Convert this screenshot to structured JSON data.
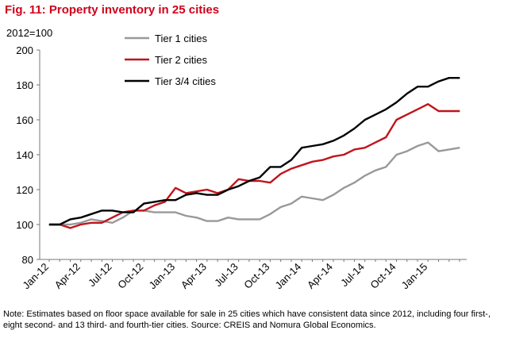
{
  "figure": {
    "title": "Fig. 11: Property inventory in 25 cities",
    "unit_label": "2012=100",
    "footnote": "Note: Estimates based on floor space available for sale in 25 cities which have consistent data since 2012, including four first-, eight second- and 13 third- and fourth-tier cities. Source: CREIS and Nomura Global Economics."
  },
  "chart_data": {
    "type": "line",
    "title": "Property inventory in 25 cities",
    "ylabel": "2012=100",
    "xlabel": "",
    "ylim": [
      80,
      200
    ],
    "yticks": [
      80,
      100,
      120,
      140,
      160,
      180,
      200
    ],
    "x_tick_labels": [
      "Jan-12",
      "Apr-12",
      "Jul-12",
      "Oct-12",
      "Jan-13",
      "Apr-13",
      "Jul-13",
      "Oct-13",
      "Jan-14",
      "Apr-14",
      "Jul-14",
      "Oct-14",
      "Jan-15"
    ],
    "x_tick_index": [
      0,
      3,
      6,
      9,
      12,
      15,
      18,
      21,
      24,
      27,
      30,
      33,
      36
    ],
    "x_count": 40,
    "grid": false,
    "legend_position": "top-left",
    "series": [
      {
        "name": "Tier 1 cities",
        "color": "#999999",
        "values": [
          100,
          100,
          100,
          101,
          103,
          102,
          101,
          104,
          108,
          108,
          107,
          107,
          107,
          105,
          104,
          102,
          102,
          104,
          103,
          103,
          103,
          106,
          110,
          112,
          116,
          115,
          114,
          117,
          121,
          124,
          128,
          131,
          133,
          140,
          142,
          145,
          147,
          142,
          143,
          144
        ]
      },
      {
        "name": "Tier 2 cities",
        "color": "#c0141c",
        "values": [
          100,
          100,
          98,
          100,
          101,
          101,
          104,
          107,
          108,
          108,
          111,
          113,
          121,
          118,
          119,
          120,
          118,
          120,
          126,
          125,
          125,
          124,
          129,
          132,
          134,
          136,
          137,
          139,
          140,
          143,
          144,
          147,
          150,
          160,
          163,
          166,
          169,
          165,
          165,
          165
        ]
      },
      {
        "name": "Tier 3/4 cities",
        "color": "#000000",
        "values": [
          100,
          100,
          103,
          104,
          106,
          108,
          108,
          107,
          107,
          112,
          113,
          114,
          114,
          117,
          118,
          117,
          117,
          120,
          122,
          125,
          127,
          133,
          133,
          137,
          144,
          145,
          146,
          148,
          151,
          155,
          160,
          163,
          166,
          170,
          175,
          179,
          179,
          182,
          184,
          184
        ]
      }
    ]
  }
}
